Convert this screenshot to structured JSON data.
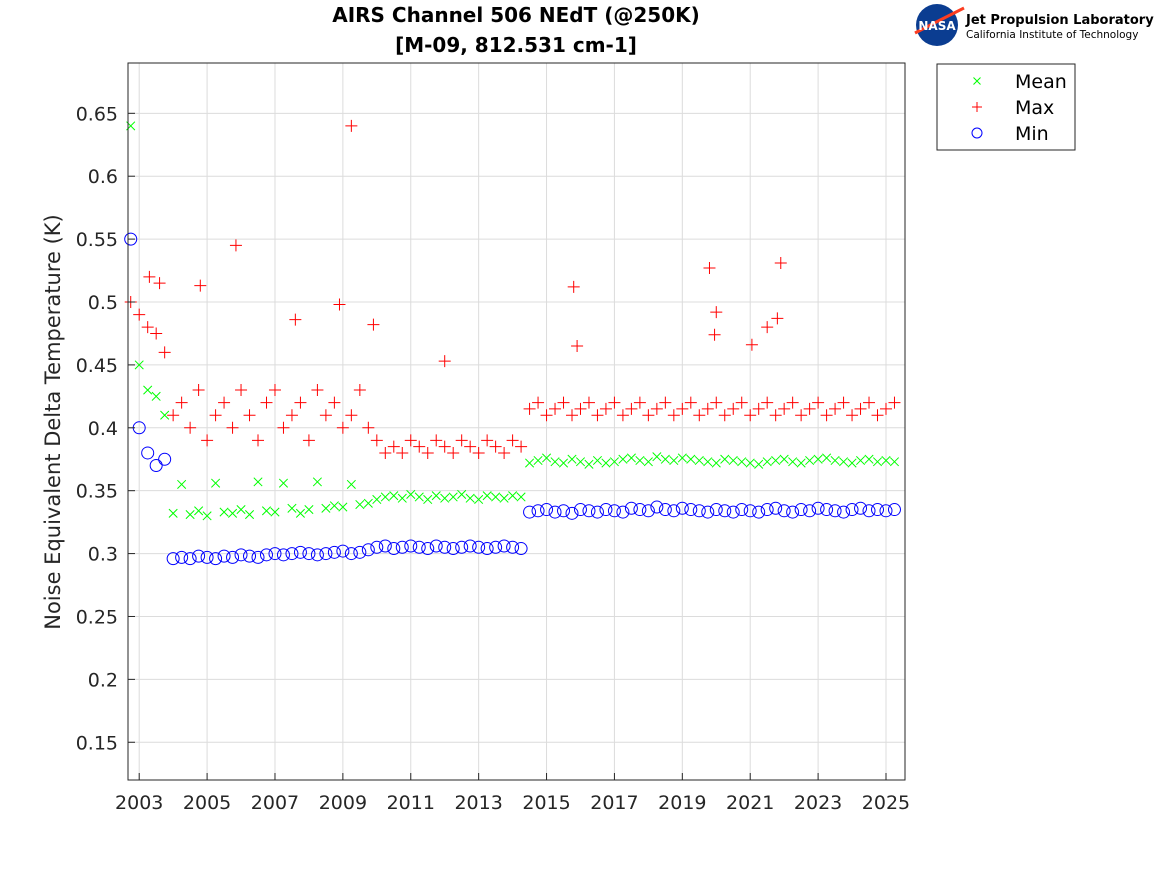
{
  "logo": {
    "emblem_text": "NASA",
    "org_name": "Jet Propulsion Laboratory",
    "org_subtitle": "California Institute of Technology"
  },
  "chart_data": {
    "type": "scatter",
    "title_line1": "AIRS Channel 506 NEdT (@250K)",
    "title_line2": "[M-09, 812.531 cm-1]",
    "xlabel": "",
    "ylabel": "Noise Equivalent Delta Temperature (K)",
    "xlim": [
      2002.67,
      2025.56
    ],
    "ylim": [
      0.12,
      0.69
    ],
    "xticks": [
      2003,
      2005,
      2007,
      2009,
      2011,
      2013,
      2015,
      2017,
      2019,
      2021,
      2023,
      2025
    ],
    "yticks": [
      0.15,
      0.2,
      0.25,
      0.3,
      0.35,
      0.4,
      0.45,
      0.5,
      0.55,
      0.6,
      0.65
    ],
    "grid": true,
    "legend_placement": "outside-top-right",
    "x": [
      2002.75,
      2003,
      2003.25,
      2003.5,
      2003.75,
      2004,
      2004.25,
      2004.5,
      2004.75,
      2005,
      2005.25,
      2005.5,
      2005.75,
      2006,
      2006.25,
      2006.5,
      2006.75,
      2007,
      2007.25,
      2007.5,
      2007.75,
      2008,
      2008.25,
      2008.5,
      2008.75,
      2009,
      2009.25,
      2009.5,
      2009.75,
      2010,
      2010.25,
      2010.5,
      2010.75,
      2011,
      2011.25,
      2011.5,
      2011.75,
      2012,
      2012.25,
      2012.5,
      2012.75,
      2013,
      2013.25,
      2013.5,
      2013.75,
      2014,
      2014.25,
      2014.5,
      2014.75,
      2015,
      2015.25,
      2015.5,
      2015.75,
      2016,
      2016.25,
      2016.5,
      2016.75,
      2017,
      2017.25,
      2017.5,
      2017.75,
      2018,
      2018.25,
      2018.5,
      2018.75,
      2019,
      2019.25,
      2019.5,
      2019.75,
      2020,
      2020.25,
      2020.5,
      2020.75,
      2021,
      2021.25,
      2021.5,
      2021.75,
      2022,
      2022.25,
      2022.5,
      2022.75,
      2023,
      2023.25,
      2023.5,
      2023.75,
      2024,
      2024.25,
      2024.5,
      2024.75,
      2025,
      2025.25
    ],
    "series": [
      {
        "name": "Mean",
        "marker": "x",
        "color": "#00ff00",
        "values": [
          0.64,
          0.45,
          0.43,
          0.425,
          0.41,
          0.332,
          0.355,
          0.331,
          0.334,
          0.33,
          0.356,
          0.333,
          0.332,
          0.335,
          0.331,
          0.357,
          0.334,
          0.333,
          0.356,
          0.336,
          0.332,
          0.335,
          0.357,
          0.336,
          0.338,
          0.337,
          0.355,
          0.339,
          0.34,
          0.343,
          0.345,
          0.346,
          0.344,
          0.347,
          0.345,
          0.343,
          0.346,
          0.344,
          0.345,
          0.347,
          0.344,
          0.343,
          0.346,
          0.345,
          0.344,
          0.346,
          0.345,
          0.372,
          0.374,
          0.376,
          0.373,
          0.372,
          0.375,
          0.373,
          0.371,
          0.374,
          0.372,
          0.373,
          0.375,
          0.376,
          0.374,
          0.373,
          0.377,
          0.375,
          0.374,
          0.376,
          0.375,
          0.374,
          0.373,
          0.372,
          0.375,
          0.374,
          0.373,
          0.372,
          0.371,
          0.373,
          0.374,
          0.375,
          0.373,
          0.372,
          0.374,
          0.375,
          0.376,
          0.374,
          0.373,
          0.372,
          0.374,
          0.375,
          0.373,
          0.374,
          0.373
        ]
      },
      {
        "name": "Max",
        "marker": "+",
        "color": "#ff0000",
        "values": [
          0.5,
          0.49,
          0.48,
          0.475,
          0.46,
          0.41,
          0.42,
          0.4,
          0.43,
          0.39,
          0.41,
          0.42,
          0.4,
          0.43,
          0.41,
          0.39,
          0.42,
          0.43,
          0.4,
          0.41,
          0.42,
          0.39,
          0.43,
          0.41,
          0.42,
          0.4,
          0.41,
          0.43,
          0.4,
          0.39,
          0.38,
          0.385,
          0.38,
          0.39,
          0.385,
          0.38,
          0.39,
          0.385,
          0.38,
          0.39,
          0.385,
          0.38,
          0.39,
          0.385,
          0.38,
          0.39,
          0.385,
          0.415,
          0.42,
          0.41,
          0.415,
          0.42,
          0.41,
          0.415,
          0.42,
          0.41,
          0.415,
          0.42,
          0.41,
          0.415,
          0.42,
          0.41,
          0.415,
          0.42,
          0.41,
          0.415,
          0.42,
          0.41,
          0.415,
          0.42,
          0.41,
          0.415,
          0.42,
          0.41,
          0.415,
          0.42,
          0.41,
          0.415,
          0.42,
          0.41,
          0.415,
          0.42,
          0.41,
          0.415,
          0.42,
          0.41,
          0.415,
          0.42,
          0.41,
          0.415,
          0.42
        ],
        "outliers": [
          [
            2009.25,
            0.64
          ],
          [
            2005.85,
            0.545
          ],
          [
            2004.8,
            0.513
          ],
          [
            2008.9,
            0.498
          ],
          [
            2015.8,
            0.512
          ],
          [
            2019.8,
            0.527
          ],
          [
            2021.9,
            0.531
          ],
          [
            2020.0,
            0.492
          ],
          [
            2019.95,
            0.474
          ],
          [
            2021.05,
            0.466
          ],
          [
            2015.9,
            0.465
          ],
          [
            2021.8,
            0.487
          ],
          [
            2021.5,
            0.48
          ],
          [
            2009.9,
            0.482
          ],
          [
            2007.6,
            0.486
          ],
          [
            2012.0,
            0.453
          ],
          [
            2003.3,
            0.52
          ],
          [
            2003.6,
            0.515
          ]
        ]
      },
      {
        "name": "Min",
        "marker": "o",
        "color": "#0000ff",
        "values": [
          0.55,
          0.4,
          0.38,
          0.37,
          0.375,
          0.296,
          0.297,
          0.296,
          0.298,
          0.297,
          0.296,
          0.298,
          0.297,
          0.299,
          0.298,
          0.297,
          0.299,
          0.3,
          0.299,
          0.3,
          0.301,
          0.3,
          0.299,
          0.3,
          0.301,
          0.302,
          0.3,
          0.301,
          0.303,
          0.305,
          0.306,
          0.304,
          0.305,
          0.306,
          0.305,
          0.304,
          0.306,
          0.305,
          0.304,
          0.305,
          0.306,
          0.305,
          0.304,
          0.305,
          0.306,
          0.305,
          0.304,
          0.333,
          0.334,
          0.335,
          0.333,
          0.334,
          0.332,
          0.335,
          0.334,
          0.333,
          0.335,
          0.334,
          0.333,
          0.336,
          0.335,
          0.334,
          0.337,
          0.335,
          0.334,
          0.336,
          0.335,
          0.334,
          0.333,
          0.335,
          0.334,
          0.333,
          0.335,
          0.334,
          0.333,
          0.335,
          0.336,
          0.334,
          0.333,
          0.335,
          0.334,
          0.336,
          0.335,
          0.334,
          0.333,
          0.335,
          0.336,
          0.334,
          0.335,
          0.334,
          0.335
        ]
      }
    ]
  }
}
